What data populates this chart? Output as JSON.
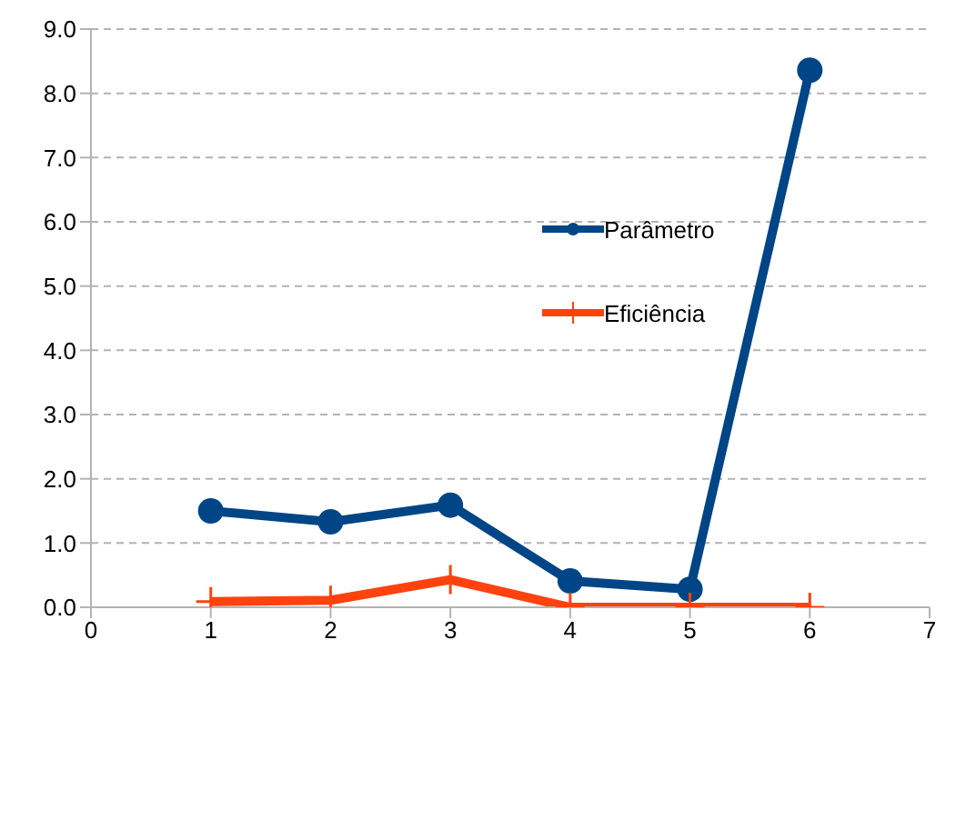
{
  "chart_data": {
    "type": "line",
    "x": [
      1,
      2,
      3,
      4,
      5,
      6
    ],
    "series": [
      {
        "name": "Parâmetro",
        "color": "#004586",
        "values": [
          1.5,
          1.33,
          1.59,
          0.41,
          0.28,
          8.36
        ],
        "marker": "circle"
      },
      {
        "name": "Eficiência",
        "color": "#ff420e",
        "values": [
          0.09,
          0.11,
          0.43,
          0,
          0,
          0
        ],
        "marker": "cross"
      }
    ],
    "xlim": [
      0,
      7
    ],
    "xticks": [
      0,
      1,
      2,
      3,
      4,
      5,
      6,
      7
    ],
    "ylim": [
      0,
      9
    ],
    "yticks": [
      {
        "value": 0,
        "label": "0.0"
      },
      {
        "value": 1,
        "label": "1.0"
      },
      {
        "value": 2,
        "label": "2.0"
      },
      {
        "value": 3,
        "label": "3.0"
      },
      {
        "value": 4,
        "label": "4.0"
      },
      {
        "value": 5,
        "label": "5.0"
      },
      {
        "value": 6,
        "label": "6.0"
      },
      {
        "value": 7,
        "label": "7.0"
      },
      {
        "value": 8,
        "label": "8.0"
      },
      {
        "value": 9,
        "label": "9.0"
      }
    ],
    "grid": "y",
    "legend": "top",
    "line_style": "solid"
  }
}
